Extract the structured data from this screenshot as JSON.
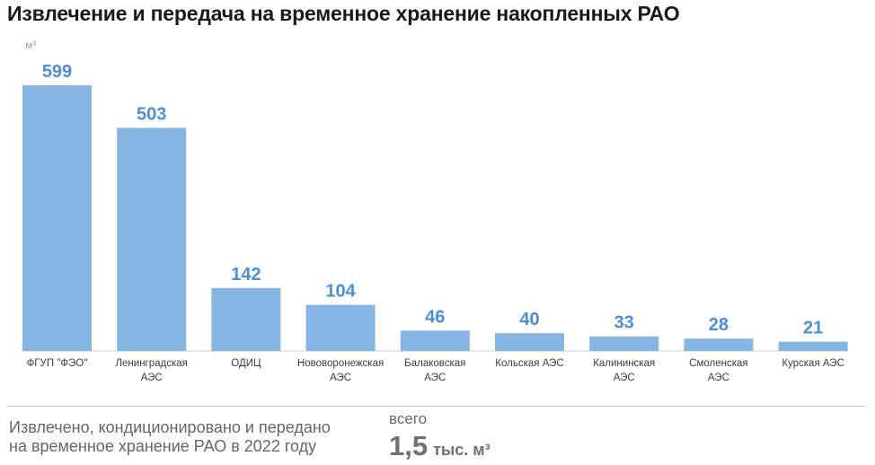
{
  "title": "Извлечение и передача на временное хранение накопленных РАО",
  "chart_data": {
    "type": "bar",
    "unit": "м³",
    "categories": [
      [
        "ФГУП \"ФЭО\""
      ],
      [
        "Ленинградская",
        "АЭС"
      ],
      [
        "ОДИЦ"
      ],
      [
        "Нововоронежская",
        "АЭС"
      ],
      [
        "Балаковская",
        "АЭС"
      ],
      [
        "Кольская АЭС"
      ],
      [
        "Калининская",
        "АЭС"
      ],
      [
        "Смоленская",
        "АЭС"
      ],
      [
        "Курская АЭС"
      ]
    ],
    "values": [
      599,
      503,
      142,
      104,
      46,
      40,
      33,
      28,
      21
    ],
    "ylim": [
      0,
      600
    ],
    "color": "#85b5e3",
    "label_color": "#4a8fd6"
  },
  "footer": {
    "description_line1": "Извлечено, кондиционировано и передано",
    "description_line2": "на временное хранение РАО в 2022 году",
    "total_label": "всего",
    "total_value": "1,5",
    "total_unit": "тыс. м³"
  }
}
